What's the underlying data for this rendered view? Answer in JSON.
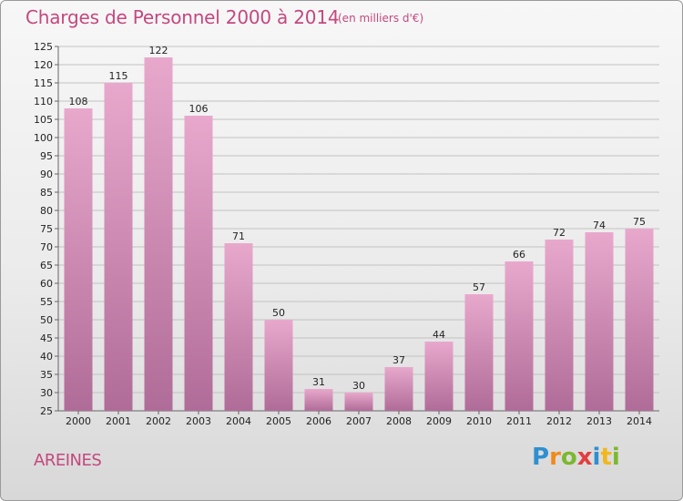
{
  "title": "Charges de Personnel 2000 à 2014",
  "subtitle": "(en milliers d'€)",
  "place": "AREINES",
  "brand": {
    "letters": [
      "P",
      "r",
      "o",
      "x",
      "i",
      "t",
      "i"
    ],
    "colors": [
      "#2f8fd0",
      "#f08a1c",
      "#7cb82f",
      "#e43d3d",
      "#2f8fd0",
      "#f0b81c",
      "#7cb82f"
    ]
  },
  "colors": {
    "accent": "#c4487f",
    "bar_top": "#e8a8cc",
    "bar_bottom": "#b06c98"
  },
  "chart_data": {
    "type": "bar",
    "title": "Charges de Personnel 2000 à 2014",
    "subtitle": "(en milliers d'€)",
    "xlabel": "",
    "ylabel": "",
    "categories": [
      "2000",
      "2001",
      "2002",
      "2003",
      "2004",
      "2005",
      "2006",
      "2007",
      "2008",
      "2009",
      "2010",
      "2011",
      "2012",
      "2013",
      "2014"
    ],
    "values": [
      108,
      115,
      122,
      106,
      71,
      50,
      31,
      30,
      37,
      44,
      57,
      66,
      72,
      74,
      75
    ],
    "ylim": [
      25,
      125
    ],
    "yticks": [
      25,
      30,
      35,
      40,
      45,
      50,
      55,
      60,
      65,
      70,
      75,
      80,
      85,
      90,
      95,
      100,
      105,
      110,
      115,
      120,
      125
    ],
    "grid": true,
    "legend": "none"
  }
}
